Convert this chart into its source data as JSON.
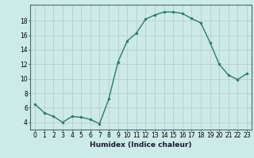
{
  "x": [
    0,
    1,
    2,
    3,
    4,
    5,
    6,
    7,
    8,
    9,
    10,
    11,
    12,
    13,
    14,
    15,
    16,
    17,
    18,
    19,
    20,
    21,
    22,
    23
  ],
  "y": [
    6.5,
    5.3,
    4.8,
    4.0,
    4.8,
    4.7,
    4.4,
    3.8,
    7.2,
    12.3,
    15.2,
    16.3,
    18.2,
    18.8,
    19.2,
    19.2,
    19.0,
    18.3,
    17.7,
    15.0,
    12.0,
    10.5,
    9.9,
    10.7
  ],
  "line_color": "#2d7a6e",
  "marker": "o",
  "marker_size": 2.0,
  "bg_color": "#cceae7",
  "grid_color_major": "#b8c8c0",
  "grid_color_minor": "#d4deda",
  "xlabel": "Humidex (Indice chaleur)",
  "xlim": [
    -0.5,
    23.5
  ],
  "ylim": [
    3.0,
    20.2
  ],
  "yticks": [
    4,
    6,
    8,
    10,
    12,
    14,
    16,
    18
  ],
  "xticks": [
    0,
    1,
    2,
    3,
    4,
    5,
    6,
    7,
    8,
    9,
    10,
    11,
    12,
    13,
    14,
    15,
    16,
    17,
    18,
    19,
    20,
    21,
    22,
    23
  ],
  "tick_label_fontsize": 5.5,
  "xlabel_fontsize": 6.5,
  "line_width": 1.0
}
